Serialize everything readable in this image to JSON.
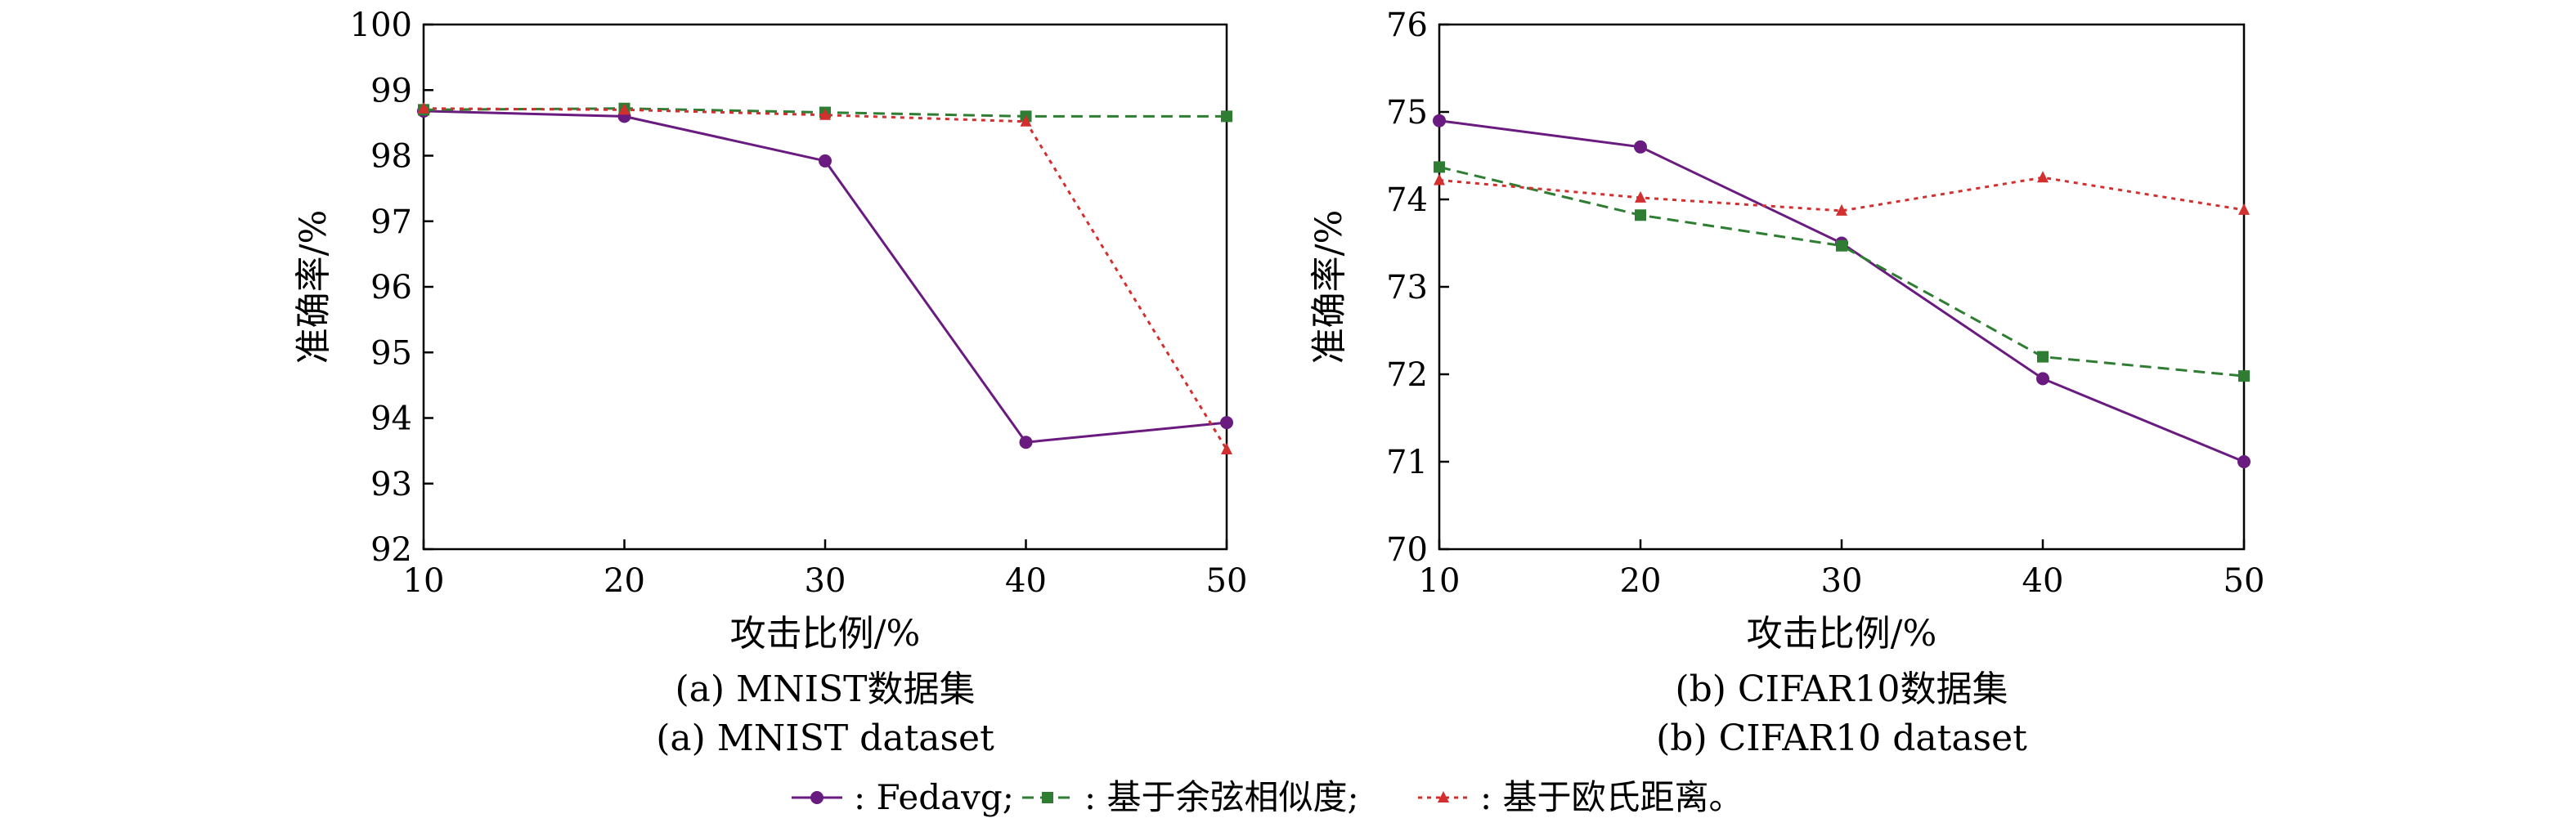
{
  "chart_data": [
    {
      "type": "line",
      "x": [
        10,
        20,
        30,
        40,
        50
      ],
      "xlim": [
        10,
        50
      ],
      "ylim": [
        92,
        100
      ],
      "xticks": [
        "10",
        "20",
        "30",
        "40",
        "50"
      ],
      "yticks": [
        "92",
        "93",
        "94",
        "95",
        "96",
        "97",
        "98",
        "99",
        "100"
      ],
      "xlabel": "攻击比例/%",
      "ylabel": "准确率/%",
      "caption_cn": "(a) MNIST数据集",
      "caption_en": "(a) MNIST dataset",
      "grid": false,
      "series": [
        {
          "name": "Fedavg",
          "values": [
            98.68,
            98.6,
            97.92,
            93.63,
            93.93
          ],
          "color": "#6a1b7f",
          "marker": "circle",
          "dash": "solid"
        },
        {
          "name": "基于余弦相似度",
          "values": [
            98.7,
            98.72,
            98.66,
            98.6,
            98.6
          ],
          "color": "#2e7d32",
          "marker": "square",
          "dash": "dashed"
        },
        {
          "name": "基于欧氏距离",
          "values": [
            98.72,
            98.7,
            98.62,
            98.52,
            93.52
          ],
          "color": "#d32f2f",
          "marker": "triangle",
          "dash": "dotted"
        }
      ]
    },
    {
      "type": "line",
      "x": [
        10,
        20,
        30,
        40,
        50
      ],
      "xlim": [
        10,
        50
      ],
      "ylim": [
        70,
        76
      ],
      "xticks": [
        "10",
        "20",
        "30",
        "40",
        "50"
      ],
      "yticks": [
        "70",
        "71",
        "72",
        "73",
        "74",
        "75",
        "76"
      ],
      "xlabel": "攻击比例/%",
      "ylabel": "准确率/%",
      "caption_cn": "(b) CIFAR10数据集",
      "caption_en": "(b) CIFAR10 dataset",
      "grid": false,
      "series": [
        {
          "name": "Fedavg",
          "values": [
            74.9,
            74.6,
            73.5,
            71.95,
            71.0
          ],
          "color": "#6a1b7f",
          "marker": "circle",
          "dash": "solid"
        },
        {
          "name": "基于余弦相似度",
          "values": [
            74.37,
            73.82,
            73.47,
            72.2,
            71.98
          ],
          "color": "#2e7d32",
          "marker": "square",
          "dash": "dashed"
        },
        {
          "name": "基于欧氏距离",
          "values": [
            74.22,
            74.02,
            73.87,
            74.25,
            73.88
          ],
          "color": "#d32f2f",
          "marker": "triangle",
          "dash": "dotted"
        }
      ]
    }
  ],
  "legend": {
    "position": "bottom-center",
    "items": [
      {
        "label": ": Fedavg;",
        "color": "#6a1b7f",
        "marker": "circle",
        "dash": "solid"
      },
      {
        "label": ": 基于余弦相似度;",
        "color": "#2e7d32",
        "marker": "square",
        "dash": "dashed"
      },
      {
        "label": ": 基于欧氏距离。",
        "color": "#d32f2f",
        "marker": "triangle",
        "dash": "dotted"
      }
    ]
  }
}
